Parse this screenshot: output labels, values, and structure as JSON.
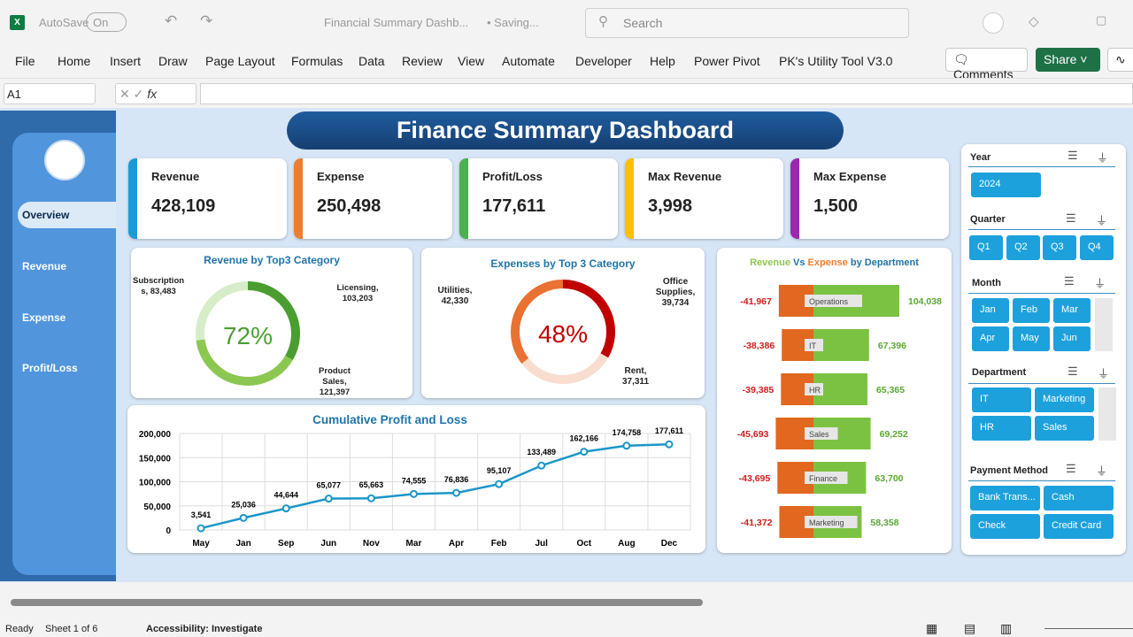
{
  "titlebar": {
    "autosave": "AutoSave",
    "autosave_state": "On",
    "doc_title": "Financial Summary Dashb...",
    "saving": "• Saving...",
    "search_placeholder": "Search"
  },
  "ribbon": {
    "tabs": [
      "File",
      "Home",
      "Insert",
      "Draw",
      "Page Layout",
      "Formulas",
      "Data",
      "Review",
      "View",
      "Automate",
      "Developer",
      "Help",
      "Power Pivot",
      "PK's Utility Tool V3.0"
    ],
    "comments": "Comments",
    "share": "Share"
  },
  "formula_bar": {
    "name_box": "A1",
    "fx": "fx",
    "value": ""
  },
  "sidebar": {
    "items": [
      "Overview",
      "Revenue",
      "Expense",
      "Profit/Loss"
    ],
    "selected": "Overview"
  },
  "dashboard": {
    "title": "Finance Summary Dashboard"
  },
  "kpis": [
    {
      "label": "Revenue",
      "value": "428,109",
      "color": "#1a9bd7"
    },
    {
      "label": "Expense",
      "value": "250,498",
      "color": "#ed7d31"
    },
    {
      "label": "Profit/Loss",
      "value": "177,611",
      "color": "#4caf50"
    },
    {
      "label": "Max Revenue",
      "value": "3,998",
      "color": "#ffc000"
    },
    {
      "label": "Max Expense",
      "value": "1,500",
      "color": "#9c27b0"
    }
  ],
  "chart_data": [
    {
      "type": "pie",
      "title": "Revenue by Top3 Category",
      "center_label": "72%",
      "categories": [
        "Licensing",
        "Product Sales",
        "Subscriptions"
      ],
      "values": [
        103203,
        121397,
        83483
      ],
      "labels": [
        "Licensing, 103,203",
        "Product Sales, 121,397",
        "Subscription s, 83,483"
      ],
      "colors": [
        "#4a9e2f",
        "#8cc751",
        "#d7edc9"
      ]
    },
    {
      "type": "pie",
      "title": "Expenses by Top 3 Category",
      "center_label": "48%",
      "categories": [
        "Office Supplies",
        "Rent",
        "Utilities"
      ],
      "values": [
        39734,
        37311,
        42330
      ],
      "labels": [
        "Office Supplies, 39,734",
        "Rent, 37,311",
        "Utilities, 42,330"
      ],
      "colors": [
        "#c00000",
        "#f8ddd0",
        "#e97132"
      ]
    },
    {
      "type": "line",
      "title": "Cumulative Profit and Loss",
      "categories": [
        "May",
        "Jan",
        "Sep",
        "Jun",
        "Nov",
        "Mar",
        "Apr",
        "Feb",
        "Jul",
        "Oct",
        "Aug",
        "Dec"
      ],
      "values": [
        3541,
        25036,
        44644,
        65077,
        65663,
        74555,
        76836,
        95107,
        133489,
        162166,
        174758,
        177611
      ],
      "data_labels": [
        "3,541",
        "25,036",
        "44,644",
        "65,077",
        "65,663",
        "74,555",
        "76,836",
        "95,107",
        "133,489",
        "162,166",
        "174,758",
        "177,611"
      ],
      "ylim": [
        0,
        200000
      ],
      "yticks": [
        "0",
        "50,000",
        "100,000",
        "150,000",
        "200,000"
      ],
      "grid": true,
      "color": "#1a96c8"
    },
    {
      "type": "bar",
      "title_parts": [
        "Revenue",
        "Vs",
        "Expense",
        "by Department"
      ],
      "categories": [
        "Operations",
        "IT",
        "HR",
        "Sales",
        "Finance",
        "Marketing"
      ],
      "series": [
        {
          "name": "Expense",
          "values": [
            -41967,
            -38386,
            -39385,
            -45693,
            -43695,
            -41372
          ],
          "labels": [
            "-41,967",
            "-38,386",
            "-39,385",
            "-45,693",
            "-43,695",
            "-41,372"
          ]
        },
        {
          "name": "Revenue",
          "values": [
            104038,
            67396,
            65365,
            69252,
            63700,
            58358
          ],
          "labels": [
            "104,038",
            "67,396",
            "65,365",
            "69,252",
            "63,700",
            "58,358"
          ]
        }
      ]
    }
  ],
  "slicers": {
    "year": {
      "title": "Year",
      "items": [
        "2024"
      ]
    },
    "quarter": {
      "title": "Quarter",
      "items": [
        "Q1",
        "Q2",
        "Q3",
        "Q4"
      ]
    },
    "month": {
      "title": "Month",
      "items": [
        "Jan",
        "Feb",
        "Mar",
        "Apr",
        "May",
        "Jun"
      ]
    },
    "department": {
      "title": "Department",
      "items": [
        "IT",
        "Marketing",
        "HR",
        "Sales"
      ]
    },
    "payment": {
      "title": "Payment Method",
      "items": [
        "Bank Trans...",
        "Cash",
        "Check",
        "Credit Card"
      ]
    }
  },
  "statusbar": {
    "ready": "Ready",
    "sheet": "Sheet 1 of 6",
    "accessibility": "Accessibility: Investigate"
  }
}
